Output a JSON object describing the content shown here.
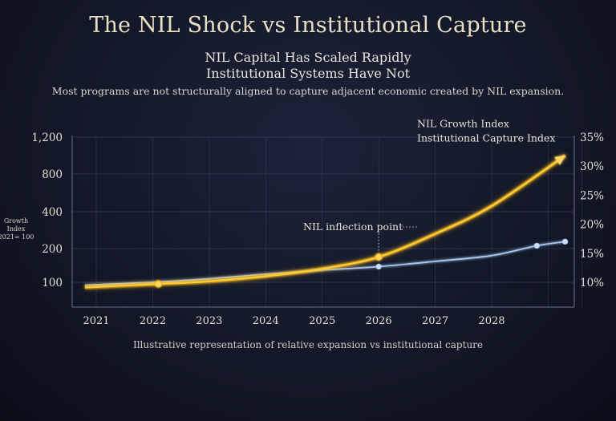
{
  "title": "The NIL Shock vs Institutional Capture",
  "subtitle_line1": "NIL Capital Has Scaled Rapidly",
  "subtitle_line2": "Institutional Systems Have Not",
  "description": "Most programs are not structurally aligned to capture adjacent economic created by NIL expansion.",
  "caption": "Illustrative representation of relative expansion vs institutional capture",
  "colors": {
    "nil": "#ffc933",
    "capture": "#a9c8f0",
    "grid": "#3c4560",
    "background": "#141a2b"
  },
  "chart_data": {
    "type": "line",
    "x_ticks": [
      "2021",
      "2022",
      "2023",
      "2024",
      "2025",
      "2026",
      "2027",
      "2028"
    ],
    "left_axis": {
      "label_lines": [
        "Growth",
        "Index",
        "2021= 100"
      ],
      "ticks": [
        "100",
        "200",
        "400",
        "800",
        "1,200"
      ]
    },
    "right_axis": {
      "ticks": [
        "10%",
        "15%",
        "20%",
        "25%",
        "30%",
        "35%"
      ]
    },
    "series": [
      {
        "name": "NIL Growth Index",
        "axis": "left",
        "x": [
          2020.8,
          2022.1,
          2023,
          2024,
          2025,
          2026,
          2027,
          2028,
          2029.3
        ],
        "values": [
          85,
          95,
          103,
          118,
          140,
          175,
          280,
          460,
          1000
        ],
        "markers_at": [
          2022.1,
          2026
        ],
        "arrow": true
      },
      {
        "name": "Institutional Capture Index",
        "axis": "right",
        "x": [
          2020.8,
          2022,
          2023,
          2024,
          2025,
          2026,
          2027,
          2028,
          2028.8,
          2029.3
        ],
        "values": [
          9.5,
          10.0,
          10.6,
          11.4,
          12.1,
          12.7,
          13.6,
          14.6,
          16.3,
          17.0
        ],
        "markers_at": [
          2026,
          2028.8,
          2029.3
        ]
      }
    ],
    "annotations": [
      {
        "text": "NIL inflection point",
        "x": 2026
      }
    ]
  }
}
